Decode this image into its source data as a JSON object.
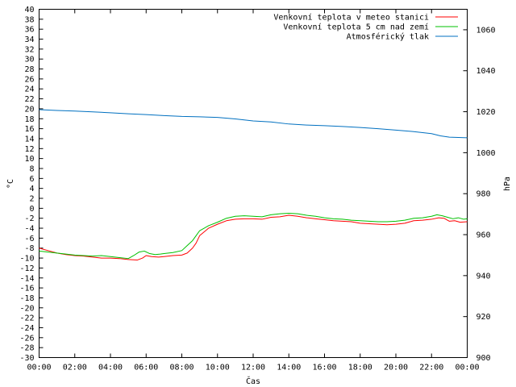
{
  "chart_data": {
    "type": "line",
    "xlabel": "Čas",
    "ylabel": "°C",
    "y2label": "hPa",
    "xlim": [
      0,
      24
    ],
    "ylim": [
      -30,
      40
    ],
    "y2lim": [
      900,
      1070
    ],
    "grid": false,
    "legend_placement": "top-right",
    "x_tick_labels": [
      "00:00",
      "02:00",
      "04:00",
      "06:00",
      "08:00",
      "10:00",
      "12:00",
      "14:00",
      "16:00",
      "18:00",
      "20:00",
      "22:00",
      "00:00"
    ],
    "y_ticks": [
      40,
      38,
      36,
      34,
      32,
      30,
      28,
      26,
      24,
      22,
      20,
      18,
      16,
      14,
      12,
      10,
      8,
      6,
      4,
      2,
      0,
      -2,
      -4,
      -6,
      -8,
      -10,
      -12,
      -14,
      -16,
      -18,
      -20,
      -22,
      -24,
      -26,
      -28,
      -30
    ],
    "y2_ticks": [
      1060,
      1040,
      1020,
      1000,
      980,
      960,
      940,
      920,
      900
    ],
    "series": [
      {
        "name": "Venkovní teplota v meteo stanici",
        "color": "#ff0000",
        "axis": "y",
        "x": [
          0,
          0.5,
          1,
          1.5,
          2,
          2.5,
          3,
          3.5,
          4,
          4.5,
          5,
          5.5,
          5.8,
          6,
          6.3,
          6.7,
          7,
          7.5,
          8,
          8.3,
          8.6,
          8.8,
          9,
          9.5,
          10,
          10.5,
          11,
          11.5,
          12,
          12.5,
          13,
          13.5,
          14,
          14.5,
          15,
          15.5,
          16,
          16.5,
          17,
          17.5,
          18,
          18.5,
          19,
          19.5,
          20,
          20.5,
          21,
          21.5,
          22,
          22.4,
          22.7,
          23,
          23.3,
          23.6,
          24
        ],
        "values": [
          -8,
          -8.5,
          -9,
          -9.3,
          -9.5,
          -9.6,
          -9.8,
          -10,
          -10,
          -10.1,
          -10.3,
          -10.4,
          -10,
          -9.5,
          -9.7,
          -9.8,
          -9.7,
          -9.5,
          -9.4,
          -9,
          -8,
          -7,
          -5.5,
          -4,
          -3.2,
          -2.5,
          -2.2,
          -2.1,
          -2.1,
          -2.2,
          -1.8,
          -1.7,
          -1.4,
          -1.6,
          -1.9,
          -2.1,
          -2.3,
          -2.5,
          -2.6,
          -2.7,
          -3,
          -3.1,
          -3.2,
          -3.3,
          -3.2,
          -3,
          -2.5,
          -2.4,
          -2.2,
          -1.9,
          -2,
          -2.6,
          -2.5,
          -2.8,
          -2.7
        ]
      },
      {
        "name": "Venkovní teplota 5 cm nad zemí",
        "color": "#00c000",
        "axis": "y",
        "x": [
          0,
          0.5,
          1,
          1.5,
          2,
          2.5,
          3,
          3.5,
          4,
          4.5,
          5,
          5.3,
          5.6,
          5.9,
          6.2,
          6.5,
          6.8,
          7,
          7.5,
          8,
          8.3,
          8.6,
          8.8,
          9,
          9.5,
          10,
          10.5,
          11,
          11.5,
          12,
          12.5,
          13,
          13.5,
          14,
          14.5,
          15,
          15.5,
          16,
          16.5,
          17,
          17.5,
          18,
          18.5,
          19,
          19.5,
          20,
          20.5,
          21,
          21.5,
          22,
          22.3,
          22.6,
          22.9,
          23.2,
          23.5,
          23.8,
          24
        ],
        "values": [
          -8.6,
          -8.8,
          -9,
          -9.2,
          -9.4,
          -9.5,
          -9.6,
          -9.5,
          -9.7,
          -9.9,
          -10.1,
          -9.5,
          -8.8,
          -8.6,
          -9.1,
          -9.3,
          -9.2,
          -9.1,
          -8.9,
          -8.5,
          -7.5,
          -6.5,
          -5.5,
          -4.5,
          -3.5,
          -2.8,
          -2,
          -1.6,
          -1.5,
          -1.6,
          -1.7,
          -1.3,
          -1.1,
          -1,
          -1.1,
          -1.4,
          -1.6,
          -1.9,
          -2.1,
          -2.2,
          -2.4,
          -2.5,
          -2.6,
          -2.7,
          -2.7,
          -2.6,
          -2.4,
          -2,
          -1.9,
          -1.6,
          -1.3,
          -1.5,
          -1.8,
          -2.1,
          -1.9,
          -2.2,
          -2.1
        ]
      },
      {
        "name": "Atmosférický tlak",
        "color": "#0070c0",
        "axis": "y2",
        "x": [
          0,
          1,
          2,
          3,
          4,
          5,
          6,
          7,
          8,
          9,
          10,
          11,
          12,
          13,
          14,
          15,
          16,
          17,
          18,
          19,
          20,
          21,
          22,
          22.5,
          23,
          24
        ],
        "values": [
          1021,
          1020.6,
          1020.3,
          1019.9,
          1019.5,
          1019,
          1018.6,
          1018.1,
          1017.7,
          1017.5,
          1017.2,
          1016.5,
          1015.5,
          1015,
          1014,
          1013.5,
          1013.2,
          1012.8,
          1012.3,
          1011.7,
          1011,
          1010.3,
          1009.3,
          1008.2,
          1007.6,
          1007.3
        ]
      }
    ]
  }
}
